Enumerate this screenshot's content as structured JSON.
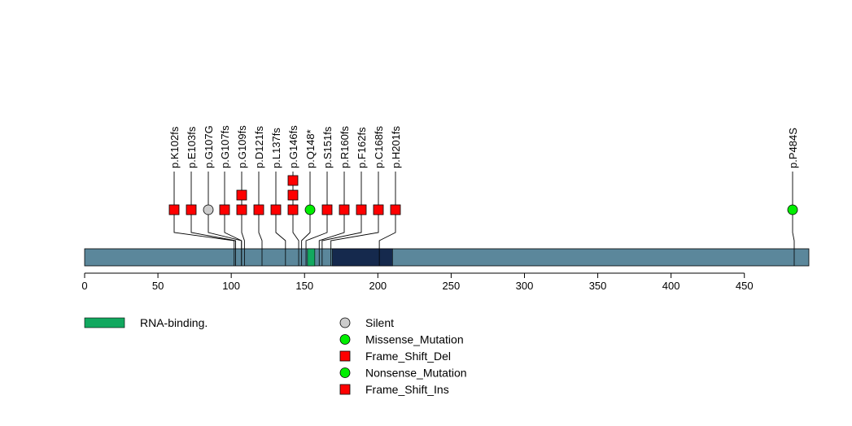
{
  "chart_data": {
    "type": "lollipop",
    "protein_length": 494,
    "xlim": [
      0,
      494
    ],
    "x_ticks": [
      0,
      50,
      100,
      150,
      200,
      250,
      300,
      350,
      400,
      450
    ],
    "backbone_color": "#5b879b",
    "domains": [
      {
        "name": "RNA-binding.",
        "start": 152,
        "end": 157,
        "color": "#12a85f",
        "in_legend": true
      },
      {
        "name": "",
        "start": 169,
        "end": 210,
        "color": "#15294d",
        "in_legend": false
      }
    ],
    "mutations": [
      {
        "label": "p.K102fs",
        "position": 102,
        "count": 1,
        "type": "Frame_Shift_Del"
      },
      {
        "label": "p.E103fs",
        "position": 103,
        "count": 1,
        "type": "Frame_Shift_Del"
      },
      {
        "label": "p.G107G",
        "position": 107,
        "count": 1,
        "type": "Silent"
      },
      {
        "label": "p.G107fs",
        "position": 107,
        "count": 1,
        "type": "Frame_Shift_Del"
      },
      {
        "label": "p.G109fs",
        "position": 109,
        "count": 2,
        "type": "Frame_Shift_Del"
      },
      {
        "label": "p.D121fs",
        "position": 121,
        "count": 1,
        "type": "Frame_Shift_Del"
      },
      {
        "label": "p.L137fs",
        "position": 137,
        "count": 1,
        "type": "Frame_Shift_Del"
      },
      {
        "label": "p.G146fs",
        "position": 146,
        "count": 3,
        "type": "Frame_Shift_Del"
      },
      {
        "label": "p.Q148*",
        "position": 148,
        "count": 1,
        "type": "Nonsense_Mutation"
      },
      {
        "label": "p.S151fs",
        "position": 151,
        "count": 1,
        "type": "Frame_Shift_Del"
      },
      {
        "label": "p.R160fs",
        "position": 160,
        "count": 1,
        "type": "Frame_Shift_Del"
      },
      {
        "label": "p.F162fs",
        "position": 162,
        "count": 1,
        "type": "Frame_Shift_Del"
      },
      {
        "label": "p.C168fs",
        "position": 168,
        "count": 1,
        "type": "Frame_Shift_Del"
      },
      {
        "label": "p.H201fs",
        "position": 201,
        "count": 1,
        "type": "Frame_Shift_Del"
      },
      {
        "label": "p.P484S",
        "position": 484,
        "count": 1,
        "type": "Missense_Mutation"
      }
    ],
    "legend_mutation_types": [
      {
        "name": "Silent",
        "shape": "circle",
        "color": "#cccccc"
      },
      {
        "name": "Missense_Mutation",
        "shape": "circle",
        "color": "#00ee00"
      },
      {
        "name": "Frame_Shift_Del",
        "shape": "square",
        "color": "#ff0000"
      },
      {
        "name": "Nonsense_Mutation",
        "shape": "circle",
        "color": "#00ee00"
      },
      {
        "name": "Frame_Shift_Ins",
        "shape": "square",
        "color": "#ff0000"
      }
    ]
  }
}
